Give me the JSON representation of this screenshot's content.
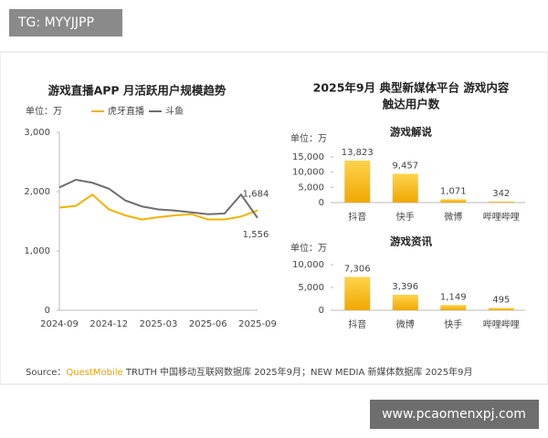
{
  "header": {
    "watermark": "TG: MYYJJPP"
  },
  "right_panel": {
    "title": [
      "2025年9月 典型新媒体平台 游戏内容",
      "触达用户数"
    ]
  },
  "footer": {
    "source": [
      "Source：",
      "QuestMobile",
      " TRUTH 中国移动互联网数据库 2025年9月；NEW MEDIA 新媒体数据库 2025年9月"
    ],
    "website": "www.pcaomenxpj.com"
  },
  "chart_data": [
    {
      "type": "line",
      "title": "游戏直播APP 月活跃用户规模趋势",
      "unit": "单位：万",
      "categories": [
        "2024-09",
        null,
        null,
        "2024-12",
        null,
        null,
        "2025-03",
        null,
        null,
        "2025-06",
        null,
        null,
        "2025-09"
      ],
      "series": [
        {
          "name": "虎牙直播",
          "color": "#f0b400",
          "values": [
            1730,
            1760,
            1950,
            1700,
            1600,
            1530,
            1570,
            1600,
            1620,
            1530,
            1530,
            1580,
            1684
          ],
          "value_labels": [
            null,
            null,
            null,
            null,
            null,
            null,
            null,
            null,
            null,
            null,
            null,
            null,
            "1,684"
          ]
        },
        {
          "name": "斗鱼",
          "color": "#6e6e6e",
          "values": [
            2070,
            2200,
            2150,
            2050,
            1850,
            1750,
            1700,
            1680,
            1650,
            1620,
            1630,
            1950,
            1556
          ],
          "value_labels": [
            null,
            null,
            null,
            null,
            null,
            null,
            null,
            null,
            null,
            null,
            null,
            null,
            "1,556"
          ]
        }
      ],
      "ylim": [
        0,
        3000
      ],
      "yticks": [
        0,
        {
          "value": 1000,
          "label": "1,000"
        },
        {
          "value": 2000,
          "label": "2,000"
        },
        {
          "value": 3000,
          "label": "3,000"
        }
      ]
    },
    {
      "type": "bar",
      "title": "游戏解说",
      "unit": "单位：万",
      "color": "#f5b50a",
      "categories": [
        "抖音",
        "快手",
        "微博",
        "哔哩哔哩"
      ],
      "values": [
        13823,
        9457,
        1071,
        342
      ],
      "value_labels": [
        "13,823",
        "9,457",
        "1,071",
        "342"
      ],
      "ylim": [
        0,
        15000
      ],
      "yticks": [
        0,
        {
          "value": 5000,
          "label": "5,000"
        },
        {
          "value": 10000,
          "label": "10,000"
        },
        {
          "value": 15000,
          "label": "15,000"
        }
      ]
    },
    {
      "type": "bar",
      "title": "游戏资讯",
      "unit": "单位：万",
      "color": "#f5b50a",
      "categories": [
        "抖音",
        "微博",
        "快手",
        "哔哩哔哩"
      ],
      "values": [
        7306,
        3396,
        1149,
        495
      ],
      "value_labels": [
        "7,306",
        "3,396",
        "1,149",
        "495"
      ],
      "ylim": [
        0,
        10000
      ],
      "yticks": [
        0,
        {
          "value": 5000,
          "label": "5,000"
        },
        {
          "value": 10000,
          "label": "10,000"
        }
      ]
    }
  ]
}
